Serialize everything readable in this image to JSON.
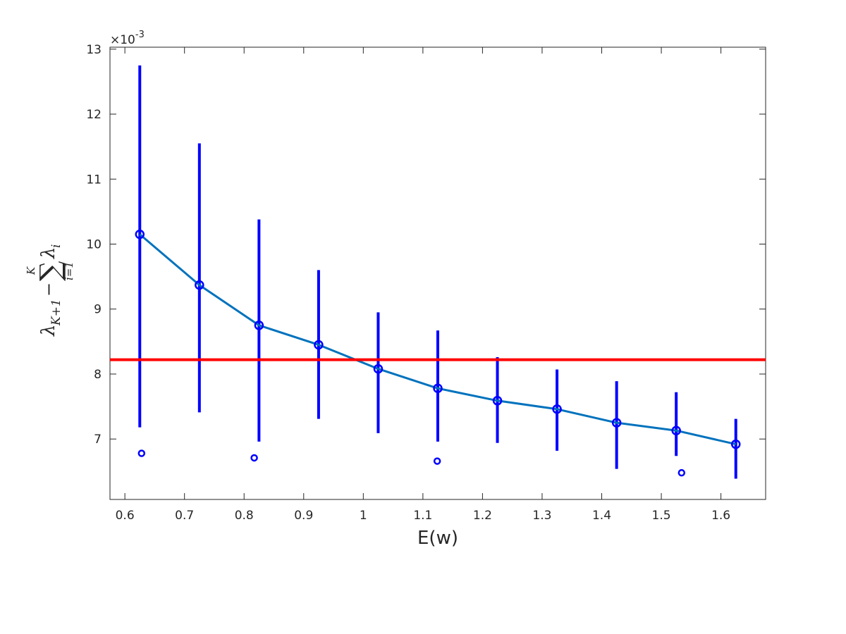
{
  "chart_data": {
    "type": "line",
    "xlabel": "E(w)",
    "ylabel_parts": {
      "lambda": "λ",
      "sub_k1": "K+1",
      "minus": "−",
      "sigma": "∑",
      "sum_upper": "K",
      "sum_lower": "i=1",
      "sub_i": "i"
    },
    "y_multiplier": {
      "prefix": "×10",
      "exponent": "-3"
    },
    "xlim": [
      0.575,
      1.675
    ],
    "ylim": [
      6.07,
      13.03
    ],
    "x_ticks": [
      0.6,
      0.7,
      0.8,
      0.9,
      1.0,
      1.1,
      1.2,
      1.3,
      1.4,
      1.5,
      1.6
    ],
    "x_tick_labels": [
      "0.6",
      "0.7",
      "0.8",
      "0.9",
      "1",
      "1.1",
      "1.2",
      "1.3",
      "1.4",
      "1.5",
      "1.6"
    ],
    "y_ticks": [
      7,
      8,
      9,
      10,
      11,
      12,
      13
    ],
    "y_tick_labels": [
      "7",
      "8",
      "9",
      "10",
      "11",
      "12",
      "13"
    ],
    "grid": false,
    "threshold": {
      "y": 8.22,
      "color": "#ff0000"
    },
    "series": [
      {
        "color": "#0072bd",
        "marker": "circle",
        "x": [
          0.625,
          0.725,
          0.825,
          0.925,
          1.025,
          1.125,
          1.225,
          1.325,
          1.425,
          1.525,
          1.625
        ],
        "y": [
          10.15,
          9.37,
          8.75,
          8.45,
          8.08,
          7.78,
          7.59,
          7.46,
          7.25,
          7.13,
          6.92
        ]
      }
    ],
    "error_bars": {
      "color": "#0000ff",
      "x": [
        0.625,
        0.725,
        0.825,
        0.925,
        1.025,
        1.125,
        1.225,
        1.325,
        1.425,
        1.525,
        1.625
      ],
      "low": [
        7.18,
        7.41,
        6.96,
        7.31,
        7.09,
        6.96,
        6.94,
        6.82,
        6.54,
        6.74,
        6.39
      ],
      "high": [
        12.75,
        11.55,
        10.38,
        9.6,
        8.95,
        8.67,
        8.26,
        8.07,
        7.89,
        7.72,
        7.31
      ]
    },
    "outliers": {
      "color": "#0000ff",
      "points": [
        {
          "x": 0.628,
          "y": 6.78
        },
        {
          "x": 0.817,
          "y": 6.71
        },
        {
          "x": 1.124,
          "y": 6.66
        },
        {
          "x": 1.534,
          "y": 6.48
        }
      ]
    }
  }
}
